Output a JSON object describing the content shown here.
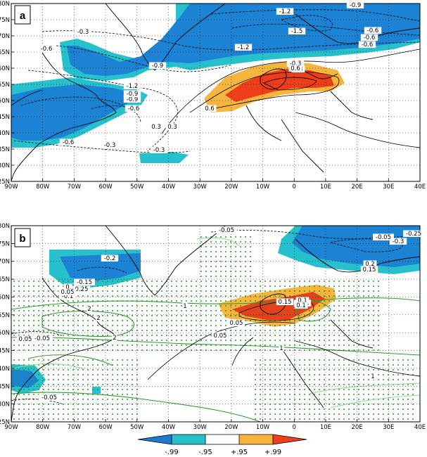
{
  "panels": [
    {
      "id": "a",
      "label": "a",
      "y_ticks": [
        "80N",
        "75N",
        "70N",
        "65N",
        "60N",
        "55N",
        "50N",
        "45N",
        "40N",
        "35N",
        "30N",
        "25N"
      ],
      "x_ticks": [
        "90W",
        "80W",
        "70W",
        "60W",
        "50W",
        "40W",
        "30W",
        "20W",
        "10W",
        "0",
        "10E",
        "20E",
        "30E",
        "40E"
      ],
      "contour_labels": [
        "-1.2",
        "-0.9",
        "-0.3",
        "-1.5",
        "-0.6",
        "-1.2",
        "-0.9",
        "-0.6",
        "-0.6",
        "-0.9",
        "-1.2",
        "-0.9",
        "-0.6",
        "-0.3",
        "0.3",
        "0.6",
        "-0.6",
        "0.6",
        "-0.3",
        "-0.6",
        "0.3",
        "-0.3",
        "0.3"
      ]
    },
    {
      "id": "b",
      "label": "b",
      "y_ticks": [
        "80N",
        "75N",
        "70N",
        "65N",
        "60N",
        "55N",
        "50N",
        "45N",
        "40N",
        "35N",
        "30N",
        "25N"
      ],
      "x_ticks": [
        "90W",
        "80W",
        "70W",
        "60W",
        "50W",
        "40W",
        "30W",
        "20W",
        "10W",
        "0",
        "10E",
        "20E",
        "30E",
        "40E"
      ],
      "contour_labels": [
        "-0.05",
        "-0.25",
        "-0.3",
        "-0.2",
        "0.2",
        "-0.15",
        "0.15",
        "0.1",
        "0.25",
        "-0.1",
        "0.05",
        "-0.05",
        "0.05",
        "0.1",
        "0.15",
        "0.1",
        "0.05",
        "0.05",
        "-0.05",
        "0.05",
        "-0.05",
        "2",
        "2",
        "1",
        "2",
        "1",
        "1"
      ]
    }
  ],
  "colorbar": {
    "labels": [
      "-.99",
      "-.95",
      "+.95",
      "+.99"
    ],
    "colors": [
      "#1e78d2",
      "#26c2cc",
      "#ffffff",
      "#f6b43c",
      "#ee3e1c"
    ]
  },
  "colors": {
    "dark_blue": "#1b82d4",
    "cyan": "#27c1cd",
    "orange": "#f6b53c",
    "red": "#ee3d1b",
    "green": "#2e9a2e",
    "light_green": "#8bdc8b"
  }
}
